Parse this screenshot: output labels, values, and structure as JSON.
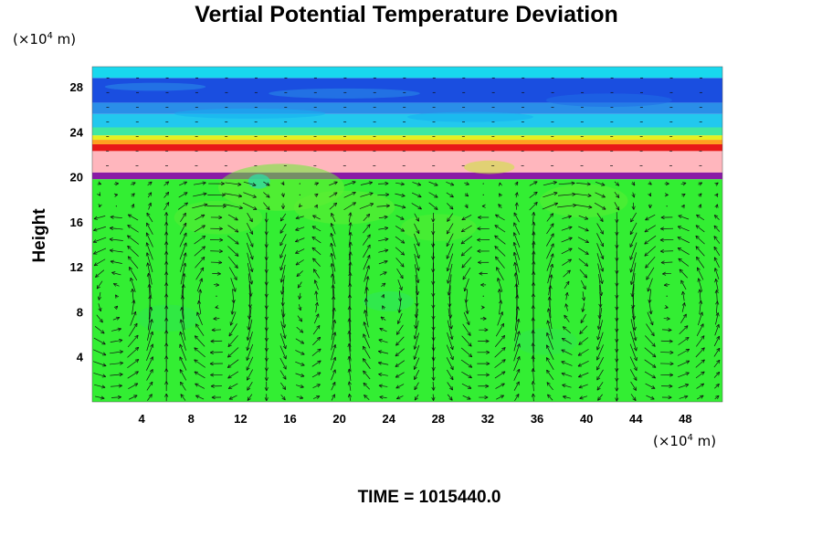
{
  "chart_data": {
    "type": "heatmap",
    "title": "Vertial Potential Temperature Deviation",
    "ylabel": "Height",
    "x_unit": {
      "prefix": "(×10",
      "exp": "4",
      "suffix": " m)"
    },
    "y_unit": {
      "prefix": "(×10",
      "exp": "4",
      "suffix": " m)"
    },
    "xlim": [
      0,
      51
    ],
    "ylim": [
      0,
      29.8
    ],
    "x_ticks": [
      4,
      8,
      12,
      16,
      20,
      24,
      28,
      32,
      36,
      40,
      44,
      48
    ],
    "y_ticks": [
      4,
      8,
      12,
      16,
      20,
      24,
      28
    ],
    "x_tick_labels": [
      "4",
      "8",
      "12",
      "16",
      "20",
      "24",
      "28",
      "32",
      "36",
      "40",
      "44",
      "48"
    ],
    "y_tick_labels": [
      "4",
      "8",
      "12",
      "16",
      "20",
      "24",
      "28"
    ],
    "layers": [
      {
        "from": 0,
        "to": 19.8,
        "color": "#33ee33"
      },
      {
        "from": 19.8,
        "to": 20.4,
        "color": "#8a1aa6"
      },
      {
        "from": 20.4,
        "to": 22.3,
        "color": "#ffb6bd"
      },
      {
        "from": 22.3,
        "to": 22.9,
        "color": "#e81818"
      },
      {
        "from": 22.9,
        "to": 23.3,
        "color": "#ffa020"
      },
      {
        "from": 23.3,
        "to": 23.7,
        "color": "#e6f020"
      },
      {
        "from": 23.7,
        "to": 24.4,
        "color": "#40e8a0"
      },
      {
        "from": 24.4,
        "to": 25.6,
        "color": "#22c8ee"
      },
      {
        "from": 25.6,
        "to": 26.6,
        "color": "#2a8ee8"
      },
      {
        "from": 26.6,
        "to": 28.8,
        "color": "#1a4ee0"
      },
      {
        "from": 28.8,
        "to": 29.8,
        "color": "#18d8ee"
      }
    ],
    "vector_field": {
      "cells": [
        {
          "x": 2,
          "rotation": "anticlockwise"
        },
        {
          "x": 10,
          "rotation": "clockwise"
        },
        {
          "x": 18,
          "rotation": "anticlockwise"
        },
        {
          "x": 23,
          "rotation": "clockwise"
        },
        {
          "x": 32,
          "rotation": "anticlockwise"
        },
        {
          "x": 39,
          "rotation": "clockwise"
        },
        {
          "x": 46,
          "rotation": "anticlockwise"
        }
      ]
    },
    "grid": false
  },
  "footer": {
    "time_label": "TIME = 1015440.0"
  }
}
